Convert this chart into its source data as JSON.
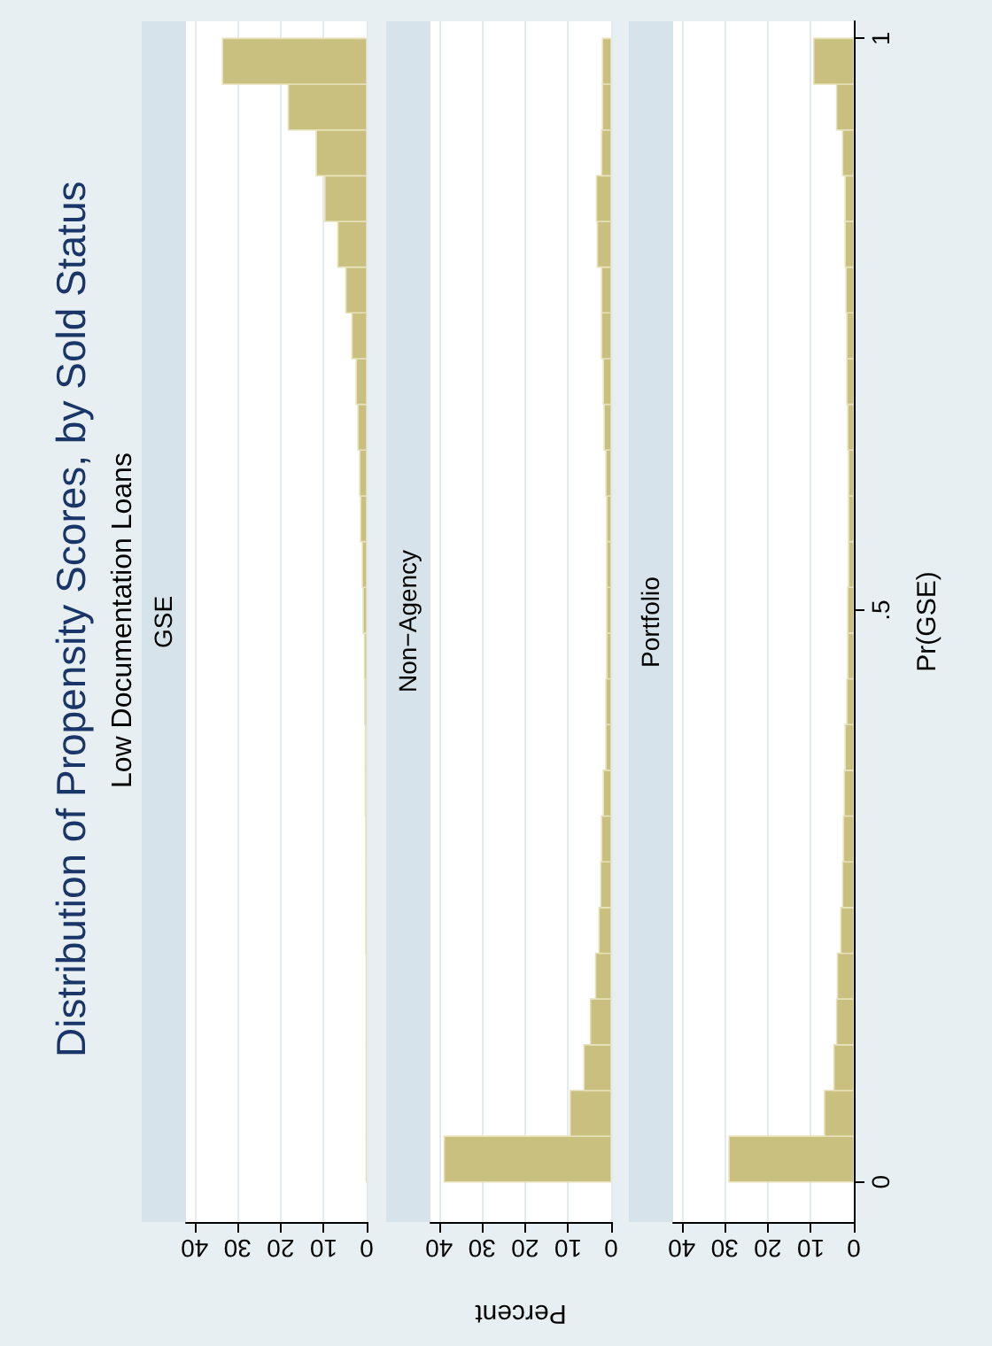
{
  "chart_data": [
    {
      "type": "other",
      "title": "Distribution of Propensity Scores, by Sold Status",
      "subtitle": "Low Documentation Loans"
    },
    {
      "type": "histogram",
      "orientation": "horizontal",
      "title": "GSE",
      "bins": [
        0,
        0.04,
        0.08,
        0.12,
        0.16,
        0.2,
        0.24,
        0.28,
        0.32,
        0.36,
        0.4,
        0.44,
        0.48,
        0.52,
        0.56,
        0.6,
        0.64,
        0.68,
        0.72,
        0.76,
        0.8,
        0.84,
        0.88,
        0.92,
        0.96,
        1
      ],
      "values": [
        0.1,
        0.1,
        0.1,
        0.1,
        0.1,
        0.2,
        0.2,
        0.2,
        0.3,
        0.3,
        0.4,
        0.5,
        0.8,
        1.0,
        1.4,
        1.6,
        2.0,
        2.4,
        3.4,
        4.8,
        6.7,
        9.7,
        11.7,
        18.2,
        33.5
      ],
      "color": "#c9bf7e",
      "ylim": [
        -0.035,
        1.015
      ],
      "xlim": [
        42,
        0
      ],
      "xticks": [
        0,
        10,
        20,
        30,
        40
      ],
      "grid": "x",
      "tick_labels": "x"
    },
    {
      "type": "histogram",
      "orientation": "horizontal",
      "title": "Non−Agency",
      "xlabel": "Percent",
      "bins": [
        0,
        0.04,
        0.08,
        0.12,
        0.16,
        0.2,
        0.24,
        0.28,
        0.32,
        0.36,
        0.4,
        0.44,
        0.48,
        0.52,
        0.56,
        0.6,
        0.64,
        0.68,
        0.72,
        0.76,
        0.8,
        0.84,
        0.88,
        0.92,
        0.96,
        1
      ],
      "values": [
        38.8,
        9.5,
        6.3,
        4.8,
        3.6,
        2.8,
        2.4,
        2.2,
        1.8,
        1.2,
        1.2,
        1.0,
        1.0,
        1.0,
        1.0,
        1.2,
        1.6,
        1.8,
        2.2,
        2.2,
        3.2,
        3.4,
        2.2,
        2.0,
        2.0
      ],
      "color": "#c9bf7e",
      "ylim": [
        -0.035,
        1.015
      ],
      "xlim": [
        42,
        0
      ],
      "xticks": [
        0,
        10,
        20,
        30,
        40
      ],
      "grid": "x",
      "tick_labels": "x"
    },
    {
      "type": "histogram",
      "orientation": "horizontal",
      "title": "Portfolio",
      "ylabel": "Pr(GSE)",
      "bins": [
        0,
        0.04,
        0.08,
        0.12,
        0.16,
        0.2,
        0.24,
        0.28,
        0.32,
        0.36,
        0.4,
        0.44,
        0.48,
        0.52,
        0.56,
        0.6,
        0.64,
        0.68,
        0.72,
        0.76,
        0.8,
        0.84,
        0.88,
        0.92,
        0.96,
        1
      ],
      "values": [
        29.0,
        6.8,
        4.6,
        4.0,
        3.8,
        3.0,
        2.6,
        2.4,
        2.2,
        2.0,
        1.6,
        1.4,
        1.4,
        1.2,
        1.2,
        1.2,
        1.4,
        1.6,
        1.6,
        1.8,
        2.0,
        2.0,
        2.6,
        4.0,
        9.3
      ],
      "color": "#c9bf7e",
      "ylim": [
        -0.035,
        1.015
      ],
      "yticks": [
        0,
        {
          "value": 0.5,
          "label": ".5"
        },
        1
      ],
      "xlim": [
        42,
        0
      ],
      "xticks": [
        0,
        10,
        20,
        30,
        40
      ],
      "grid": "x"
    }
  ]
}
